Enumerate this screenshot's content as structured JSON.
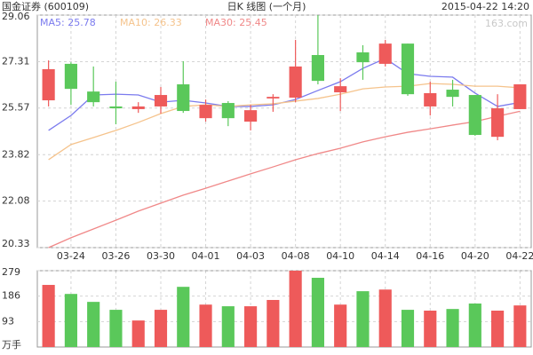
{
  "chart_data": [
    {
      "type": "candlestick",
      "title": "国金证券 (600109)",
      "subtitle": "日K 线图 (一个月)",
      "date": "2015-04-22 14:20",
      "source": "163.com",
      "categories": [
        null,
        "03-24",
        null,
        "03-26",
        null,
        "03-30",
        null,
        "04-01",
        null,
        "04-03",
        null,
        "04-08",
        null,
        "04-10",
        null,
        "04-14",
        null,
        "04-16",
        null,
        "04-20",
        null,
        "04-22"
      ],
      "open": [
        25.86,
        27.23,
        26.19,
        25.63,
        25.53,
        25.63,
        26.46,
        25.19,
        25.76,
        25.06,
        25.93,
        25.96,
        27.56,
        26.16,
        27.66,
        27.23,
        27.99,
        25.63,
        26.26,
        26.06,
        24.49,
        25.53
      ],
      "high": [
        27.36,
        27.29,
        27.13,
        26.56,
        25.79,
        26.36,
        27.33,
        25.89,
        25.83,
        25.69,
        26.09,
        28.13,
        29.06,
        26.69,
        27.93,
        28.13,
        27.99,
        26.56,
        26.63,
        26.06,
        26.09,
        26.46
      ],
      "low": [
        25.63,
        25.69,
        25.63,
        24.96,
        25.39,
        25.36,
        25.39,
        25.06,
        24.89,
        24.73,
        25.43,
        25.79,
        26.46,
        25.46,
        26.63,
        27.13,
        26.03,
        25.29,
        25.63,
        24.53,
        24.36,
        25.53
      ],
      "close": [
        27.03,
        26.29,
        25.79,
        25.56,
        25.63,
        26.06,
        25.46,
        25.69,
        25.19,
        25.49,
        25.99,
        27.13,
        26.59,
        26.39,
        27.29,
        27.99,
        26.09,
        26.13,
        25.99,
        24.56,
        25.56,
        26.46
      ],
      "up_color": "#ee5a5a",
      "down_color": "#5ac85a",
      "series": [
        {
          "name": "MA5: 25.78",
          "color": "#7b7bee",
          "values": [
            24.73,
            25.29,
            26.06,
            26.09,
            26.06,
            25.79,
            25.86,
            25.76,
            25.63,
            25.63,
            25.69,
            25.89,
            26.23,
            26.56,
            27.06,
            27.43,
            26.86,
            26.76,
            26.73,
            26.13,
            25.63,
            25.78
          ]
        },
        {
          "name": "MA10: 26.33",
          "color": "#f5c38c",
          "values": [
            23.63,
            24.2,
            24.46,
            24.73,
            25.03,
            25.36,
            25.63,
            25.69,
            25.63,
            25.69,
            25.73,
            25.83,
            25.93,
            26.09,
            26.29,
            26.36,
            26.39,
            26.49,
            26.46,
            26.39,
            26.39,
            26.33
          ]
        },
        {
          "name": "MA30: 25.45",
          "color": "#f08888",
          "values": [
            20.33,
            20.7,
            21.03,
            21.36,
            21.7,
            22.0,
            22.3,
            22.56,
            22.83,
            23.1,
            23.36,
            23.63,
            23.86,
            24.06,
            24.3,
            24.49,
            24.66,
            24.79,
            24.93,
            25.06,
            25.26,
            25.45
          ]
        }
      ],
      "ylim": [
        20.33,
        29.06
      ],
      "yticks": [
        20.33,
        22.08,
        23.82,
        25.57,
        27.31,
        29.06
      ],
      "grid": true
    },
    {
      "type": "bar",
      "unit": "万手",
      "values": [
        227,
        194,
        165,
        136,
        97,
        136,
        220,
        155,
        149,
        149,
        172,
        279,
        253,
        155,
        204,
        210,
        136,
        133,
        139,
        159,
        133,
        152
      ],
      "colors": [
        "#ee5a5a",
        "#5ac85a",
        "#5ac85a",
        "#5ac85a",
        "#ee5a5a",
        "#ee5a5a",
        "#5ac85a",
        "#ee5a5a",
        "#5ac85a",
        "#ee5a5a",
        "#ee5a5a",
        "#ee5a5a",
        "#5ac85a",
        "#ee5a5a",
        "#5ac85a",
        "#ee5a5a",
        "#5ac85a",
        "#ee5a5a",
        "#5ac85a",
        "#5ac85a",
        "#ee5a5a",
        "#ee5a5a"
      ],
      "ylim": [
        0,
        279
      ],
      "yticks": [
        93,
        186,
        279
      ],
      "grid": true
    }
  ]
}
